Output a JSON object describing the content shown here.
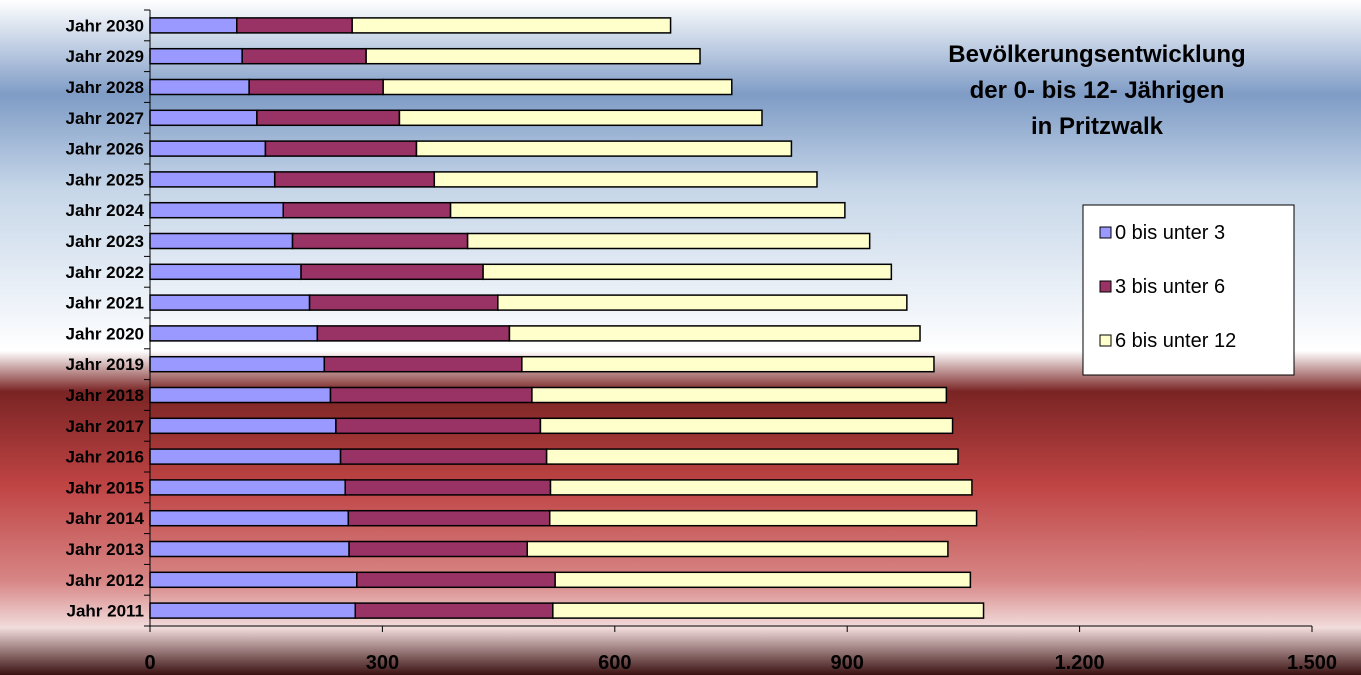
{
  "chart_data": {
    "type": "bar",
    "orientation": "horizontal",
    "stacked": true,
    "title": [
      "Bevölkerungsentwicklung",
      "der 0- bis 12- Jährigen",
      "in Pritzwalk"
    ],
    "xlabel": "",
    "ylabel": "",
    "xlim": [
      0,
      1500
    ],
    "x_ticks": [
      0,
      300,
      600,
      900,
      1200,
      1500
    ],
    "x_tick_labels": [
      "0",
      "300",
      "600",
      "900",
      "1.200",
      "1.500"
    ],
    "grid": false,
    "legend_position": "right",
    "categories": [
      "Jahr 2011",
      "Jahr 2012",
      "Jahr 2013",
      "Jahr 2014",
      "Jahr 2015",
      "Jahr 2016",
      "Jahr 2017",
      "Jahr 2018",
      "Jahr 2019",
      "Jahr 2020",
      "Jahr 2021",
      "Jahr 2022",
      "Jahr 2023",
      "Jahr 2024",
      "Jahr 2025",
      "Jahr 2026",
      "Jahr 2027",
      "Jahr 2028",
      "Jahr 2029",
      "Jahr 2030"
    ],
    "series": [
      {
        "name": "0 bis unter 3",
        "color": "#9999ff",
        "values": [
          265,
          267,
          257,
          256,
          252,
          246,
          240,
          233,
          225,
          216,
          206,
          195,
          184,
          172,
          161,
          149,
          138,
          128,
          119,
          112
        ]
      },
      {
        "name": "3 bis unter 6",
        "color": "#993366",
        "values": [
          255,
          256,
          230,
          260,
          265,
          266,
          264,
          260,
          255,
          248,
          243,
          235,
          226,
          216,
          206,
          195,
          184,
          173,
          160,
          149
        ]
      },
      {
        "name": "6 bis unter 12",
        "color": "#ffffcc",
        "values": [
          556,
          536,
          543,
          551,
          544,
          531,
          532,
          535,
          532,
          530,
          528,
          527,
          519,
          509,
          494,
          484,
          468,
          450,
          431,
          411
        ]
      }
    ]
  },
  "colors": {
    "background_top": "#9bb4d4",
    "background_red": "#b83a3a",
    "bar_outline": "#000000"
  }
}
